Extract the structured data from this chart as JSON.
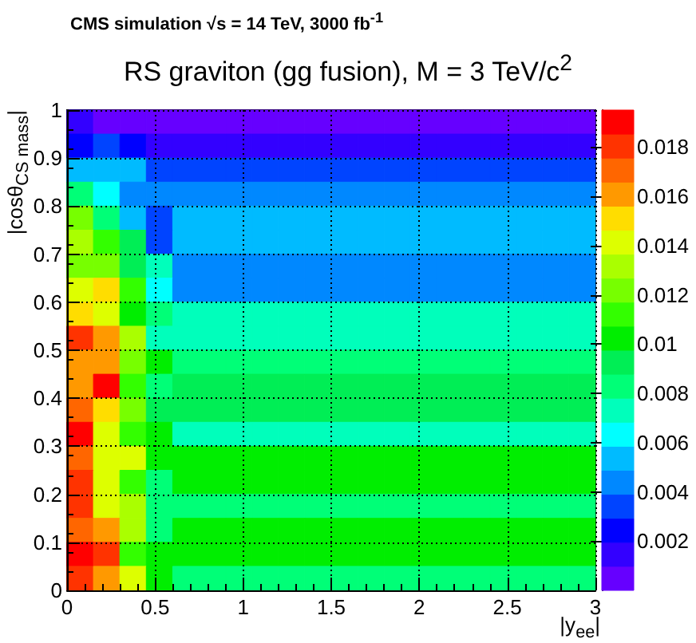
{
  "chart_data": {
    "type": "heatmap",
    "subtitle": "CMS simulation  √s = 14 TeV, 3000 fb$^{-1}$",
    "title": "RS graviton (gg fusion), M = 3 TeV/c$^{2}$",
    "xlabel": "|y$_{ee}$|",
    "ylabel": "|cosθ$_{CS mass}$|",
    "x": [
      0.075,
      0.225,
      0.375,
      0.525,
      0.675,
      0.825,
      0.975,
      1.125,
      1.275,
      1.425,
      1.575,
      1.725,
      1.875,
      2.025,
      2.175,
      2.325,
      2.475,
      2.625,
      2.775,
      2.925
    ],
    "y": [
      0.975,
      0.925,
      0.875,
      0.825,
      0.775,
      0.725,
      0.675,
      0.625,
      0.575,
      0.525,
      0.475,
      0.425,
      0.375,
      0.325,
      0.275,
      0.225,
      0.175,
      0.125,
      0.075,
      0.025
    ],
    "cells": [
      [
        0.0015,
        0.0005,
        0.0005,
        0.0005,
        0.0005,
        0.0005,
        0.0005,
        0.0005,
        0.0005,
        0.0005,
        0.0005,
        0.0005,
        0.0005,
        0.0005,
        0.0005,
        0.0005,
        0.0005,
        0.0005,
        0.0005,
        0.0005
      ],
      [
        0.0024,
        0.0034,
        0.0024,
        0.0015,
        0.0015,
        0.0015,
        0.0015,
        0.0015,
        0.0015,
        0.0015,
        0.0015,
        0.0015,
        0.0015,
        0.0015,
        0.0015,
        0.0015,
        0.0015,
        0.0015,
        0.0015,
        0.0015
      ],
      [
        0.0054,
        0.0054,
        0.0054,
        0.0034,
        0.0034,
        0.0034,
        0.0034,
        0.0034,
        0.0034,
        0.0034,
        0.0034,
        0.0034,
        0.0034,
        0.0034,
        0.0034,
        0.0034,
        0.0034,
        0.0034,
        0.0034,
        0.0034
      ],
      [
        0.0083,
        0.0063,
        0.0044,
        0.0044,
        0.0044,
        0.0044,
        0.0044,
        0.0044,
        0.0044,
        0.0044,
        0.0044,
        0.0044,
        0.0044,
        0.0044,
        0.0044,
        0.0044,
        0.0044,
        0.0044,
        0.0044,
        0.0044
      ],
      [
        0.0122,
        0.0083,
        0.0054,
        0.0034,
        0.0054,
        0.0054,
        0.0054,
        0.0054,
        0.0054,
        0.0054,
        0.0054,
        0.0054,
        0.0054,
        0.0054,
        0.0054,
        0.0054,
        0.0054,
        0.0054,
        0.0054,
        0.0054
      ],
      [
        0.0132,
        0.0112,
        0.0093,
        0.0034,
        0.0054,
        0.0054,
        0.0054,
        0.0054,
        0.0054,
        0.0054,
        0.0054,
        0.0054,
        0.0054,
        0.0054,
        0.0054,
        0.0054,
        0.0054,
        0.0054,
        0.0054,
        0.0054
      ],
      [
        0.0122,
        0.0122,
        0.0093,
        0.0073,
        0.0044,
        0.0044,
        0.0044,
        0.0044,
        0.0044,
        0.0044,
        0.0044,
        0.0044,
        0.0044,
        0.0044,
        0.0044,
        0.0044,
        0.0044,
        0.0044,
        0.0044,
        0.0044
      ],
      [
        0.0141,
        0.0151,
        0.0112,
        0.0063,
        0.0044,
        0.0044,
        0.0044,
        0.0044,
        0.0044,
        0.0044,
        0.0044,
        0.0044,
        0.0044,
        0.0044,
        0.0044,
        0.0044,
        0.0044,
        0.0044,
        0.0044,
        0.0044
      ],
      [
        0.0151,
        0.0141,
        0.0102,
        0.0083,
        0.0073,
        0.0073,
        0.0073,
        0.0073,
        0.0073,
        0.0073,
        0.0073,
        0.0073,
        0.0073,
        0.0073,
        0.0073,
        0.0073,
        0.0073,
        0.0073,
        0.0073,
        0.0073
      ],
      [
        0.018,
        0.0161,
        0.0132,
        0.0073,
        0.0073,
        0.0073,
        0.0073,
        0.0073,
        0.0073,
        0.0073,
        0.0073,
        0.0073,
        0.0073,
        0.0073,
        0.0073,
        0.0073,
        0.0073,
        0.0073,
        0.0073,
        0.0073
      ],
      [
        0.0161,
        0.0161,
        0.0122,
        0.0102,
        0.0083,
        0.0083,
        0.0083,
        0.0083,
        0.0083,
        0.0083,
        0.0083,
        0.0083,
        0.0083,
        0.0083,
        0.0083,
        0.0083,
        0.0083,
        0.0083,
        0.0083,
        0.0083
      ],
      [
        0.0161,
        0.019,
        0.0112,
        0.0083,
        0.0093,
        0.0093,
        0.0093,
        0.0093,
        0.0093,
        0.0093,
        0.0093,
        0.0093,
        0.0093,
        0.0093,
        0.0093,
        0.0093,
        0.0093,
        0.0093,
        0.0093,
        0.0093
      ],
      [
        0.0171,
        0.0151,
        0.0122,
        0.0093,
        0.0093,
        0.0093,
        0.0093,
        0.0093,
        0.0093,
        0.0093,
        0.0093,
        0.0093,
        0.0093,
        0.0093,
        0.0093,
        0.0093,
        0.0093,
        0.0093,
        0.0093,
        0.0093
      ],
      [
        0.019,
        0.0141,
        0.0112,
        0.0102,
        0.0073,
        0.0073,
        0.0073,
        0.0073,
        0.0073,
        0.0073,
        0.0073,
        0.0073,
        0.0073,
        0.0073,
        0.0073,
        0.0073,
        0.0073,
        0.0073,
        0.0073,
        0.0073
      ],
      [
        0.0171,
        0.0141,
        0.0141,
        0.0102,
        0.0102,
        0.0102,
        0.0102,
        0.0102,
        0.0102,
        0.0102,
        0.0102,
        0.0102,
        0.0102,
        0.0102,
        0.0102,
        0.0102,
        0.0102,
        0.0102,
        0.0102,
        0.0102
      ],
      [
        0.018,
        0.0141,
        0.0112,
        0.0083,
        0.0102,
        0.0102,
        0.0102,
        0.0102,
        0.0102,
        0.0102,
        0.0102,
        0.0102,
        0.0102,
        0.0102,
        0.0102,
        0.0102,
        0.0102,
        0.0102,
        0.0102,
        0.0102
      ],
      [
        0.018,
        0.0141,
        0.0132,
        0.0083,
        0.0083,
        0.0083,
        0.0083,
        0.0083,
        0.0083,
        0.0083,
        0.0083,
        0.0083,
        0.0083,
        0.0083,
        0.0083,
        0.0083,
        0.0083,
        0.0083,
        0.0083,
        0.0083
      ],
      [
        0.0171,
        0.0161,
        0.0132,
        0.0083,
        0.0102,
        0.0102,
        0.0102,
        0.0102,
        0.0102,
        0.0102,
        0.0102,
        0.0102,
        0.0102,
        0.0102,
        0.0102,
        0.0102,
        0.0102,
        0.0102,
        0.0102,
        0.0102
      ],
      [
        0.019,
        0.018,
        0.0112,
        0.0102,
        0.0102,
        0.0102,
        0.0102,
        0.0102,
        0.0102,
        0.0102,
        0.0102,
        0.0102,
        0.0102,
        0.0102,
        0.0102,
        0.0102,
        0.0102,
        0.0102,
        0.0102,
        0.0102
      ],
      [
        0.018,
        0.0161,
        0.0141,
        0.0102,
        0.0083,
        0.0083,
        0.0083,
        0.0083,
        0.0083,
        0.0083,
        0.0083,
        0.0083,
        0.0083,
        0.0083,
        0.0083,
        0.0083,
        0.0083,
        0.0083,
        0.0083,
        0.0083
      ]
    ],
    "colors": [
      "#6600ff",
      "#3300ff",
      "#0000ff",
      "#0044ff",
      "#0088ff",
      "#00bbff",
      "#00ffff",
      "#00ffbb",
      "#00ff77",
      "#00ee55",
      "#00ee00",
      "#33ff00",
      "#77ff00",
      "#aaff00",
      "#ddff00",
      "#ffdd00",
      "#ff9900",
      "#ff6600",
      "#ff3300",
      "#ff0000"
    ],
    "xlim": [
      0,
      3
    ],
    "xticks": [
      0,
      0.5,
      1,
      1.5,
      2,
      2.5,
      3
    ],
    "ylim": [
      0,
      1
    ],
    "yticks": [
      0,
      0.1,
      0.2,
      0.3,
      0.4,
      0.5,
      0.6,
      0.7,
      0.8,
      0.9,
      1
    ],
    "clim": [
      0,
      0.0195
    ],
    "cticks": [
      0.002,
      0.004,
      0.006,
      0.008,
      0.01,
      0.012,
      0.014,
      0.016,
      0.018
    ],
    "grid": true
  }
}
